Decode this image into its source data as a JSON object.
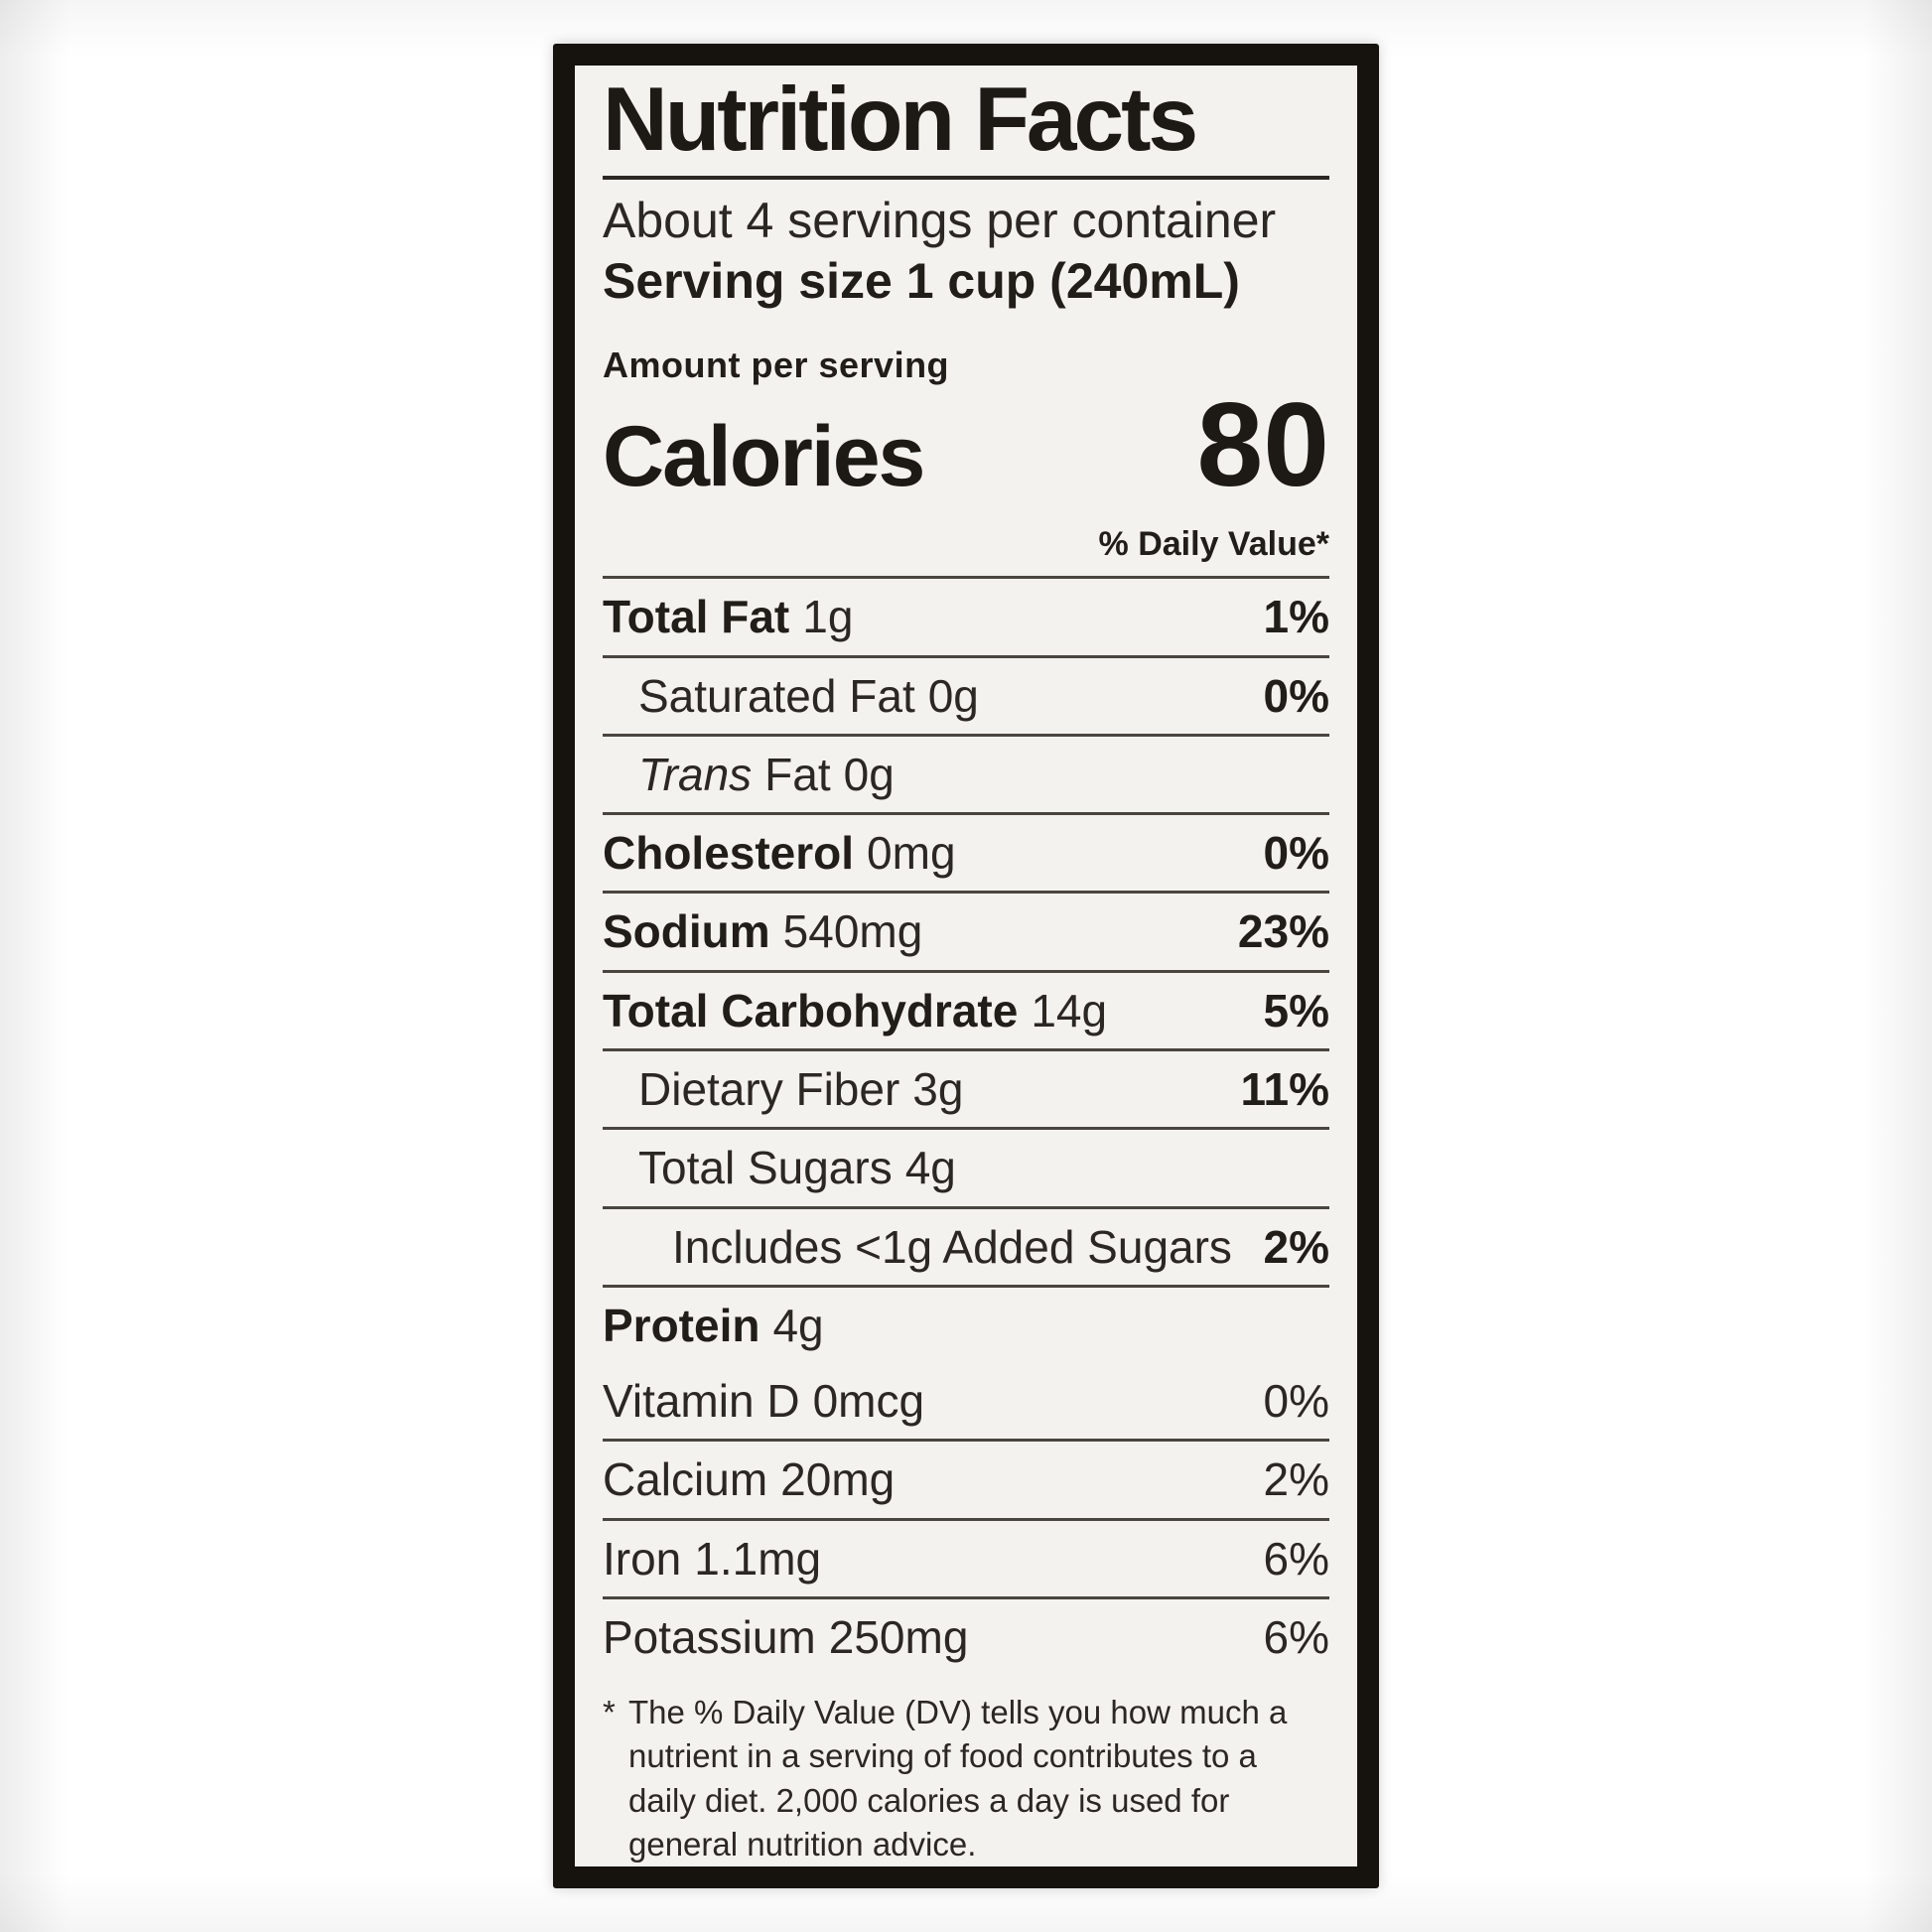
{
  "colors": {
    "frame_black": "#16130f",
    "label_background": "#f3f2ef",
    "text_black": "#211d18"
  },
  "label": {
    "title": "Nutrition Facts",
    "servings_per_container": "About 4 servings per container",
    "serving_size_label": "Serving size",
    "serving_size_value": "1 cup (240mL)",
    "amount_per_serving": "Amount per serving",
    "calories_label": "Calories",
    "calories_value": "80",
    "daily_value_header": "% Daily Value*",
    "nutrients": [
      {
        "name": "Total Fat",
        "amount": "1g",
        "dv": "1%"
      },
      {
        "name": "Saturated Fat",
        "amount": "0g",
        "dv": "0%"
      },
      {
        "name_italic": "Trans",
        "name": "Fat",
        "amount": "0g",
        "dv": ""
      },
      {
        "name": "Cholesterol",
        "amount": "0mg",
        "dv": "0%"
      },
      {
        "name": "Sodium",
        "amount": "540mg",
        "dv": "23%"
      },
      {
        "name": "Total Carbohydrate",
        "amount": "14g",
        "dv": "5%"
      },
      {
        "name": "Dietary Fiber",
        "amount": "3g",
        "dv": "11%"
      },
      {
        "name": "Total Sugars",
        "amount": "4g",
        "dv": ""
      },
      {
        "name": "Includes <1g Added Sugars",
        "amount": "",
        "dv": "2%"
      },
      {
        "name": "Protein",
        "amount": "4g",
        "dv": ""
      }
    ],
    "micronutrients": [
      {
        "name": "Vitamin D",
        "amount": "0mcg",
        "dv": "0%"
      },
      {
        "name": "Calcium",
        "amount": "20mg",
        "dv": "2%"
      },
      {
        "name": "Iron",
        "amount": "1.1mg",
        "dv": "6%"
      },
      {
        "name": "Potassium",
        "amount": "250mg",
        "dv": "6%"
      }
    ],
    "footnote_star": "*",
    "footnote_text": "The % Daily Value (DV) tells you how much a nutrient in a serving of food contributes to a daily diet. 2,000 calories a day is used for general nutrition advice."
  }
}
